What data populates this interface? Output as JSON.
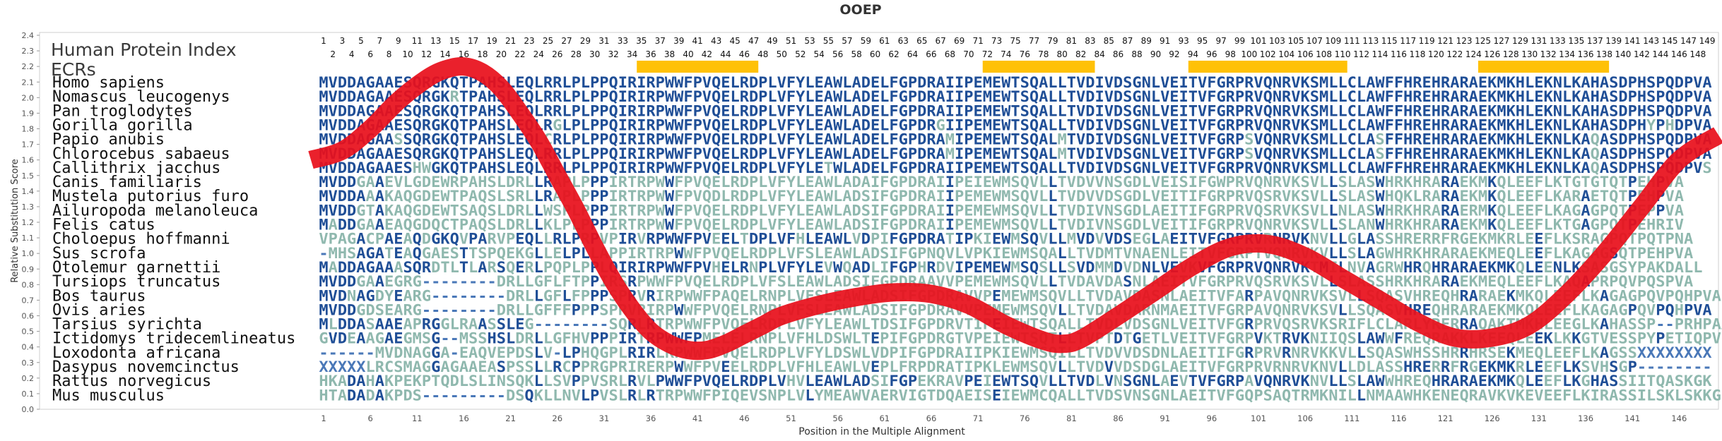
{
  "colors": {
    "curve": "#e8101c",
    "ecr_bar": "#ffc107",
    "dark_blue": "#1f4e96",
    "mid_blue": "#4a78b8",
    "pale": "#8fb8ae",
    "label": "#111111",
    "title": "#333333"
  },
  "chart_data": {
    "type": "line",
    "title": "OOEP",
    "xlabel": "Position in the Multiple Alignment",
    "ylabel": "Relative Substitution Score",
    "ylim": [
      0,
      2.4
    ],
    "yticks": [
      0.0,
      0.1,
      0.2,
      0.3,
      0.4,
      0.5,
      0.6,
      0.7,
      0.8,
      0.9,
      1.0,
      1.1,
      1.2,
      1.3,
      1.4,
      1.5,
      1.6,
      1.7,
      1.8,
      1.9,
      2.0,
      2.1,
      2.2,
      2.3,
      2.4
    ],
    "xlim": [
      1,
      149
    ],
    "xticks": [
      1,
      6,
      11,
      16,
      21,
      26,
      31,
      36,
      41,
      46,
      51,
      56,
      61,
      66,
      71,
      76,
      81,
      86,
      91,
      96,
      101,
      106,
      111,
      116,
      121,
      126,
      131,
      136,
      141,
      146
    ],
    "human_index_label": "Human Protein Index",
    "ecrs_label": "ECRs",
    "human_index_odd": [
      1,
      3,
      5,
      7,
      9,
      11,
      13,
      15,
      17,
      19,
      21,
      23,
      25,
      27,
      29,
      31,
      33,
      35,
      37,
      39,
      41,
      43,
      45,
      47,
      49,
      51,
      53,
      55,
      57,
      59,
      61,
      63,
      65,
      67,
      69,
      71,
      73,
      75,
      77,
      79,
      81,
      83,
      85,
      87,
      89,
      91,
      93,
      95,
      97,
      99,
      101,
      103,
      105,
      107,
      109,
      111,
      113,
      115,
      117,
      119,
      121,
      123,
      125,
      127,
      129,
      131,
      133,
      135,
      137,
      139,
      141,
      143,
      145,
      147,
      149
    ],
    "human_index_even": [
      2,
      4,
      6,
      8,
      10,
      12,
      14,
      16,
      18,
      20,
      22,
      24,
      26,
      28,
      30,
      32,
      34,
      36,
      38,
      40,
      42,
      44,
      46,
      48,
      50,
      52,
      54,
      56,
      58,
      60,
      62,
      64,
      66,
      68,
      70,
      72,
      74,
      76,
      78,
      80,
      82,
      84,
      86,
      88,
      90,
      92,
      94,
      96,
      98,
      100,
      102,
      104,
      106,
      108,
      110,
      112,
      114,
      116,
      118,
      120,
      122,
      124,
      126,
      128,
      130,
      132,
      134,
      136,
      138,
      140,
      142,
      144,
      146,
      148
    ],
    "ecr_regions": [
      [
        35,
        47
      ],
      [
        72,
        83
      ],
      [
        94,
        110
      ],
      [
        125,
        138
      ]
    ],
    "series": [
      {
        "name": "Relative Substitution Score",
        "x": [
          1,
          3,
          6,
          9,
          12,
          14,
          16,
          18,
          20,
          22,
          24,
          26,
          28,
          30,
          32,
          34,
          36,
          38,
          40,
          42,
          44,
          46,
          48,
          50,
          54,
          58,
          62,
          66,
          70,
          74,
          78,
          80,
          82,
          86,
          90,
          94,
          98,
          102,
          106,
          110,
          114,
          118,
          122,
          126,
          130,
          134,
          138,
          142,
          146,
          149
        ],
        "y": [
          1.6,
          1.66,
          1.8,
          1.98,
          2.12,
          2.18,
          2.2,
          2.16,
          2.06,
          1.9,
          1.72,
          1.5,
          1.28,
          1.04,
          0.82,
          0.64,
          0.5,
          0.42,
          0.38,
          0.38,
          0.42,
          0.48,
          0.54,
          0.6,
          0.67,
          0.72,
          0.75,
          0.74,
          0.67,
          0.54,
          0.44,
          0.42,
          0.45,
          0.6,
          0.76,
          0.92,
          1.04,
          1.06,
          0.98,
          0.84,
          0.7,
          0.56,
          0.46,
          0.46,
          0.54,
          0.74,
          1.0,
          1.3,
          1.6,
          1.76
        ]
      }
    ],
    "species": [
      {
        "name": "Homo sapiens",
        "seq": "MVDDAGAAESQRGKQTPAHSLEQLRRLPLPPQIRIRPWWFPVQELRDPLVFYLEAWLADELFGPDRAIIPEMEWTSQALLTVDIVDSGNLVEITVFGRPRVQNRVKSMLLCLAWFFHREHRARAEKMKHLEKNLKAHASDPHSPQDPVA"
      },
      {
        "name": "Nomascus leucogenys",
        "seq": "MVDDAGAAESQRGKRTPAHSLEQLRRLPLPPQIRIRPWWFPVQELRDPLVFYLEAWLADELFGPDRAIIPEMEWTSQALLTVDIVDSGNLVEITVFGRPRVQNRVKSMLLCLAWFFHREHRARAEKMKHLEKNLKAHASDPHSPQDPVA"
      },
      {
        "name": "Pan troglodytes",
        "seq": "MVDDAGAAESQRGKQTPAHSLEQLRRLPLPPQIRIRPWWFPVQELRDPLVFYLEAWLADELFGPDRAIIPEMEWTSQALLTVDIVDSGNLVEITVFGRPRVQNRVKSMLLCLAWFFHREHRARAEKMKHLEKNLKAHASDPHSPQDPVA"
      },
      {
        "name": "Gorilla gorilla",
        "seq": "MVDDAGAAESQRGKQTPAHSLEQLRGLPLPPQIRIRPWWFPVQELRDPLVFYLEAWLADELFGPDRGIIPEMEWTSQALLTVDIVDSGNLVEITVFGRPRVQNRVKSMLLCLAWFFHREHRARAEKMKHLEKNLKAHASDPHYPHDPVA"
      },
      {
        "name": "Papio anubis",
        "seq": "MVDDAGAASSQRGKQTPAHSLEQLCRLPLPPQIRIRPWWFPVQELRDPLVFYLEAWLADELFGPDRAMIPEMEWTSQALMTVDIVDSGNLVEITVFGRPSVQNRVKSMLLCLASFFHREHRARAEKMKHLEKNLKAQASDPHSPQDPVA"
      },
      {
        "name": "Chlorocebus sabaeus",
        "seq": "MVDDAGAAESQRGKQTPAHSLEQLRRLPLPPQIRIRPWWFPVQELRDPLVFYLEAWLADELFGPDRAMIPEMEWTSQALMTVDIVDSGNLVEITVFGRPSVQNRVKSMLLCLASFFHREHRARAEKMKHLEKNLKAQASDPHSPQDPVA"
      },
      {
        "name": "Callithrix jacchus",
        "seq": "MVDDAGAAESHWGKQTPAHSLEQLRRLPLPPQIRIRPWWFPVQELRDPLVFYLETWLADELFGPDRAIIPEMEWTSQALLTVDIVDSGNLVEITVFGRPRVQNRVKSMLLCLAWFFHREHRARAEKMKHLEKNLKAQASDPHSPQDPVS"
      },
      {
        "name": "Canis familiaris",
        "seq": "MVDDGAAEVLGDEWRPAHSLDRLLRAPLPPPIRTRPWWFPVQELRDPLVFYLEAWLADAIFGPDRAIIPEIEWMSQVLLTVDVVNSGDLVEISIFGWPRVQNRVKSVLLSLASWHRKHRARAEKMKQLEEFLKTGTGTQTPEHPVA"
      },
      {
        "name": "Mustela putorius furo",
        "seq": "MVDDAAAKAQGDEWTPAQSLSRLLRAPLPPPIRTRPWWFPVQDLRDPLVFYLEAWLADSIFGPDRAIIPEMEWMSQVLLTVDVVDSGDLVEITIFGRPRVQSRVKSVLLSLASWHQKLRARAEKMKQLEEFLKARAETQTPEHPVA"
      },
      {
        "name": "Ailuropoda melanoleuca",
        "seq": "MVDDGTAKAQGDEWTSAQSLDRLLWSPLPPPIRTRPWWFPVQELRDPLVFYLEAWLADSIFGPDRAIIPEMEWMSQVLLTVDIVNSGDLAEITIFGRPRVQSRVKSVLLNLASWHRKHRARAERMKQLEEFLKAGAGPQTPEPPVA"
      },
      {
        "name": "Felis catus",
        "seq": "MADDGAAEAQGDQCTPAQSLDRLLKLPLPPPIRTRPWWFPVQELRDPLVFYLEAWLADSIFGPDRAIIPEMEWMSQVLLTVDIVNSGDLVEITIFGRPRVQNRVKSVLLSLANWHRKHRARAEKMKQLEEFLKTGAGPQTPEHRIV"
      },
      {
        "name": "Choloepus hoffmanni",
        "seq": "VPAGACPAEAQDGKQVPARVPEQLLRLPRPVPIRVRPWWFPVEELTDPLVFHLEAWLVDPIFGPDRATIPKIEWMSQVLLMVDVVDSEGLAEITVFGRPRVRNRVKNVLLGLASSHRERRFRGEKMKRLEEFLKSRAGPQTPQTPNA"
      },
      {
        "name": "Sus scrofa",
        "seq": "-MHSAGATEAQGAESTTSPQEKGLLELPLLAPPIRTRPWWFPVQELRDPLVFSLEAWLADSIFGPNQVLVPKIEWMSQALLTVDMTVNAENLEITVFGRPTVQNRVKVLLSLAGWHRKHRARAEKMEQLEEFLKAGAGSQTPEHPVA"
      },
      {
        "name": "Otolemur garnettii",
        "seq": "MADDAGAAASQRDTLTLARSQERLPQPLPPLQIRIRPWWFPVHELRNPLVFYLEVWQADLIFGPHRDVIPEMEWMSQSLLSVDMMDVDNLVEVKVFGRPRVQNRVKTMILNVAGRWHRQHRARAEKMKQLEENLKSASGSYPAKDALL"
      },
      {
        "name": "Tursiops truncatus",
        "seq": "MVDDGAAEGRG--------DRLLGFLFTPPIRSRPWWFPVQELRDPLVFSLEAWLADSIFGPDRAAVVPEMEWMSQVLLTVDAVDASNLAEITVFGRPRVQSRVKSVLLSLASSHRKHRARAEKMEQLEEFLKAQAPRPQVPQSPVA"
      },
      {
        "name": "Bos taurus",
        "seq": "MVDNAGDYEARG--------DRLLGFLFPPPSPRVRIRPWWFPAQELRNPLVFSLEAWLADSIFGPDRAVVPEMEWMSQVLLTVDAVDASNLAEITVFARPAVQNRVKSVLLSQASVHREQHRARAEKMKQLEEFLKAGAGPQVPQHPVA"
      },
      {
        "name": "Ovis aries",
        "seq": "MVDDGDSEARG--------DRLLGFFFPPPSPRVRIRPWWFPVQELRNPLVFSLEAWLADSIFGPDRAVVPEMEWMSQVLLTVDAVDARNMAEITVFGRPAVQNRVKSVLLSQASVHREQHRARAEKMKQLEEFLKAGAGPQVPQHPVA"
      },
      {
        "name": "Tarsius syrichta",
        "seq": "MLDDASAAEAPRGGLRAASSLEG--------SQRLRTRPWWFPVQELRDPLVFYLEAWLTDSIFGPDRVTIPEIEWTSQALLTVDLVDSGNLVEITVFGRPRVQSRVKSRIFLCLARLYRERRAQAKTMKHLEEGLKAHASSP--PRHPAA"
      },
      {
        "name": "Ictidomys tridecemlineatus",
        "seq": "GVDEAAGAEGMSG--MSSHSLDRLLGFHVPPPIRTRPWWFPMELELRNPLVFHLDSWLTEPIFGPDRGTVPEIEWTSQTLLTVPTDTGETLVEITVFGRPVKTRVKNIIQSLAWWFREQRAKKLKEEQLEEKLKKGTVESSPYPETIQPVE"
      },
      {
        "name": "Loxodonta africana",
        "seq": "------MVDNAGGA-EAQVEPDSLV-LPHQGPLRIRLRPWWFPVQELRDPLVFYLDSWLVDPIFGPDRAIIPKIEWMSQILLTVDVVDSDNLAEITIFGRPRVRNRVKKVLLSQASWHSSHRRHRSEKMEQLEEFLKAGSSXXXXXXXX"
      },
      {
        "name": "Dasypus novemcinctus",
        "seq": "XXXXXLRCSMAGGAGAAEASPSSLLRCPPRGPRIRERPWWFPVEELRDPLVFHLEAWLVEPLFRPDRATIPKLEWMSQVLLTVDVVDSDGLAEITVFGRPRVRNRVKNVLLDLASSHRERRFRGEKMKRLEEFLKSVHSGP--------"
      },
      {
        "name": "Rattus norvegicus",
        "seq": "HKADAHAKPEKPTQDLSLINSQKLLSVPPVSRLRVLPWWFPVQELRDPLVHVLEAWLADSIFGPEKRAVPEIEWTSQVLLTVDLVNSGNLAEVTVFGRPAVQNRVKNVLLSLAWWHREQHRARAEKMKQLEEFLKGHASSIITQASKGK"
      },
      {
        "name": "Mus musculus",
        "seq": "HTADADAKPDS---------DSQKLLNVLPVSLRLRTRPWWFPIQEVSNPLVLYMEAWVAERVIGTDQAEISEIEWMCQALLTVDSVNSGNLAEITVFGQPSAQTRMKNILLNMAAWHKENEQRAVKVKEVEEFLKIRASSILSKLSKKG"
      }
    ]
  }
}
